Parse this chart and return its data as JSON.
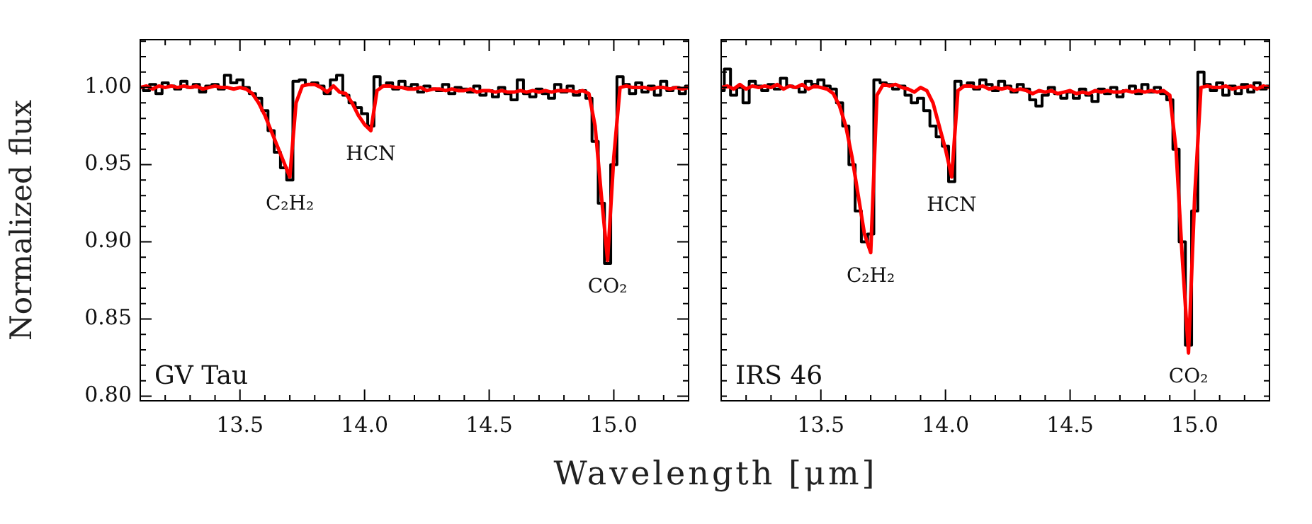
{
  "chart_data": [
    {
      "type": "line",
      "title": "GV Tau",
      "ylabel": "Normalized flux",
      "xlabel": "Wavelength [μm]",
      "marker": "none",
      "xlim": [
        13.1,
        15.3
      ],
      "ylim": [
        0.797,
        1.031
      ],
      "xticks": [
        {
          "value": 13.1,
          "label": null
        },
        {
          "value": 13.2,
          "label": null
        },
        {
          "value": 13.3,
          "label": null
        },
        {
          "value": 13.4,
          "label": null
        },
        {
          "value": 13.5,
          "label": "13.5"
        },
        {
          "value": 13.6,
          "label": null
        },
        {
          "value": 13.7,
          "label": null
        },
        {
          "value": 13.8,
          "label": null
        },
        {
          "value": 13.9,
          "label": null
        },
        {
          "value": 14.0,
          "label": "14.0"
        },
        {
          "value": 14.1,
          "label": null
        },
        {
          "value": 14.2,
          "label": null
        },
        {
          "value": 14.3,
          "label": null
        },
        {
          "value": 14.4,
          "label": null
        },
        {
          "value": 14.5,
          "label": "14.5"
        },
        {
          "value": 14.6,
          "label": null
        },
        {
          "value": 14.7,
          "label": null
        },
        {
          "value": 14.8,
          "label": null
        },
        {
          "value": 14.9,
          "label": null
        },
        {
          "value": 15.0,
          "label": "15.0"
        },
        {
          "value": 15.1,
          "label": null
        },
        {
          "value": 15.2,
          "label": null
        },
        {
          "value": 15.3,
          "label": null
        }
      ],
      "yticks": [
        {
          "value": 0.8,
          "label": "0.80"
        },
        {
          "value": 0.81,
          "label": null
        },
        {
          "value": 0.82,
          "label": null
        },
        {
          "value": 0.83,
          "label": null
        },
        {
          "value": 0.84,
          "label": null
        },
        {
          "value": 0.85,
          "label": "0.85"
        },
        {
          "value": 0.86,
          "label": null
        },
        {
          "value": 0.87,
          "label": null
        },
        {
          "value": 0.88,
          "label": null
        },
        {
          "value": 0.89,
          "label": null
        },
        {
          "value": 0.9,
          "label": "0.90"
        },
        {
          "value": 0.91,
          "label": null
        },
        {
          "value": 0.92,
          "label": null
        },
        {
          "value": 0.93,
          "label": null
        },
        {
          "value": 0.94,
          "label": null
        },
        {
          "value": 0.95,
          "label": "0.95"
        },
        {
          "value": 0.96,
          "label": null
        },
        {
          "value": 0.97,
          "label": null
        },
        {
          "value": 0.98,
          "label": null
        },
        {
          "value": 0.99,
          "label": null
        },
        {
          "value": 1.0,
          "label": "1.00"
        },
        {
          "value": 1.01,
          "label": null
        },
        {
          "value": 1.02,
          "label": null
        },
        {
          "value": 1.03,
          "label": null
        }
      ],
      "annotations": [
        {
          "text": "C₂H₂",
          "x": 13.7,
          "y": 0.94
        },
        {
          "text": "HCN",
          "x": 14.025,
          "y": 0.972
        },
        {
          "text": "CO₂",
          "x": 14.975,
          "y": 0.886
        }
      ],
      "x": [
        13.1,
        13.125,
        13.15,
        13.175,
        13.2,
        13.225,
        13.25,
        13.275,
        13.3,
        13.325,
        13.35,
        13.375,
        13.4,
        13.425,
        13.45,
        13.475,
        13.5,
        13.525,
        13.55,
        13.575,
        13.6,
        13.625,
        13.65,
        13.675,
        13.7,
        13.725,
        13.75,
        13.775,
        13.8,
        13.825,
        13.85,
        13.875,
        13.9,
        13.925,
        13.95,
        13.975,
        14.0,
        14.025,
        14.05,
        14.075,
        14.1,
        14.125,
        14.15,
        14.175,
        14.2,
        14.225,
        14.25,
        14.275,
        14.3,
        14.325,
        14.35,
        14.375,
        14.4,
        14.425,
        14.45,
        14.475,
        14.5,
        14.525,
        14.55,
        14.575,
        14.6,
        14.625,
        14.65,
        14.675,
        14.7,
        14.725,
        14.75,
        14.775,
        14.8,
        14.825,
        14.85,
        14.875,
        14.9,
        14.925,
        14.95,
        14.975,
        15.0,
        15.025,
        15.05,
        15.075,
        15.1,
        15.125,
        15.15,
        15.175,
        15.2,
        15.225,
        15.25,
        15.275,
        15.3
      ],
      "series": [
        {
          "type": "step",
          "color": "#000000",
          "values": [
            1.0,
            0.998,
            1.002,
            0.996,
            1.003,
            1.001,
            0.999,
            1.004,
            1.0,
            1.002,
            0.997,
            1.001,
            1.002,
            0.999,
            1.008,
            1.003,
            1.005,
            1.0,
            0.996,
            0.993,
            0.985,
            0.972,
            0.958,
            0.948,
            0.94,
            1.004,
            1.005,
            1.002,
            1.003,
            1.001,
            0.996,
            1.005,
            1.008,
            0.995,
            0.99,
            0.987,
            0.983,
            0.975,
            1.007,
            1.001,
            1.003,
            0.999,
            1.004,
            1.0,
            1.002,
            0.997,
            1.001,
            0.999,
            0.998,
            1.002,
            0.996,
            1.0,
            0.999,
            0.997,
            1.001,
            0.995,
            0.998,
            0.994,
            1.0,
            0.996,
            0.992,
            1.005,
            0.996,
            0.994,
            0.999,
            0.996,
            0.993,
            1.002,
            0.997,
            1.001,
            0.995,
            0.998,
            0.993,
            0.965,
            0.925,
            0.886,
            0.95,
            1.007,
            1.002,
            0.996,
            1.003,
            0.997,
            1.001,
            0.995,
            1.004,
            0.998,
            1.0,
            0.996,
            1.001
          ]
        },
        {
          "type": "line",
          "color": "#ff0000",
          "values": [
            1.0,
            1.001,
            0.999,
            1.001,
            1.0,
            1.001,
            1.0,
            1.001,
            1.0,
            1.001,
            0.999,
            1.0,
            1.001,
            1.0,
            1.0,
            0.999,
            1.0,
            0.999,
            0.996,
            0.99,
            0.982,
            0.972,
            0.962,
            0.952,
            0.942,
            0.99,
            1.001,
            1.002,
            1.002,
            1.0,
            0.997,
            1.001,
            0.997,
            0.996,
            0.99,
            0.982,
            0.976,
            0.972,
            0.998,
            1.001,
            1.001,
            1.0,
            1.0,
            0.999,
            0.999,
            1.0,
            0.998,
            0.999,
            0.999,
            0.998,
            0.999,
            0.998,
            0.998,
            0.999,
            0.997,
            0.998,
            0.998,
            0.997,
            0.998,
            0.997,
            0.997,
            0.998,
            0.997,
            0.998,
            0.997,
            0.998,
            0.997,
            0.998,
            0.998,
            0.998,
            0.997,
            0.998,
            0.996,
            0.975,
            0.93,
            0.888,
            0.955,
            1.0,
            1.001,
            1.0,
            1.0,
            1.0,
            0.999,
            1.0,
            1.0,
            0.999,
            1.0,
            0.999,
            1.0
          ]
        }
      ]
    },
    {
      "type": "line",
      "title": "IRS 46",
      "tick_labels": "x",
      "marker": "none",
      "xlim": [
        13.1,
        15.3
      ],
      "ylim": [
        0.797,
        1.031
      ],
      "xticks": [
        {
          "value": 13.1,
          "label": null
        },
        {
          "value": 13.2,
          "label": null
        },
        {
          "value": 13.3,
          "label": null
        },
        {
          "value": 13.4,
          "label": null
        },
        {
          "value": 13.5,
          "label": "13.5"
        },
        {
          "value": 13.6,
          "label": null
        },
        {
          "value": 13.7,
          "label": null
        },
        {
          "value": 13.8,
          "label": null
        },
        {
          "value": 13.9,
          "label": null
        },
        {
          "value": 14.0,
          "label": "14.0"
        },
        {
          "value": 14.1,
          "label": null
        },
        {
          "value": 14.2,
          "label": null
        },
        {
          "value": 14.3,
          "label": null
        },
        {
          "value": 14.4,
          "label": null
        },
        {
          "value": 14.5,
          "label": "14.5"
        },
        {
          "value": 14.6,
          "label": null
        },
        {
          "value": 14.7,
          "label": null
        },
        {
          "value": 14.8,
          "label": null
        },
        {
          "value": 14.9,
          "label": null
        },
        {
          "value": 15.0,
          "label": "15.0"
        },
        {
          "value": 15.1,
          "label": null
        },
        {
          "value": 15.2,
          "label": null
        },
        {
          "value": 15.3,
          "label": null
        }
      ],
      "yticks": [
        {
          "value": 0.8,
          "label": null
        },
        {
          "value": 0.81,
          "label": null
        },
        {
          "value": 0.82,
          "label": null
        },
        {
          "value": 0.83,
          "label": null
        },
        {
          "value": 0.84,
          "label": null
        },
        {
          "value": 0.85,
          "label": null
        },
        {
          "value": 0.86,
          "label": null
        },
        {
          "value": 0.87,
          "label": null
        },
        {
          "value": 0.88,
          "label": null
        },
        {
          "value": 0.89,
          "label": null
        },
        {
          "value": 0.9,
          "label": null
        },
        {
          "value": 0.91,
          "label": null
        },
        {
          "value": 0.92,
          "label": null
        },
        {
          "value": 0.93,
          "label": null
        },
        {
          "value": 0.94,
          "label": null
        },
        {
          "value": 0.95,
          "label": null
        },
        {
          "value": 0.96,
          "label": null
        },
        {
          "value": 0.97,
          "label": null
        },
        {
          "value": 0.98,
          "label": null
        },
        {
          "value": 0.99,
          "label": null
        },
        {
          "value": 1.0,
          "label": null
        },
        {
          "value": 1.01,
          "label": null
        },
        {
          "value": 1.02,
          "label": null
        },
        {
          "value": 1.03,
          "label": null
        }
      ],
      "annotations": [
        {
          "text": "C₂H₂",
          "x": 13.7,
          "y": 0.893
        },
        {
          "text": "HCN",
          "x": 14.025,
          "y": 0.939
        },
        {
          "text": "CO₂",
          "x": 14.975,
          "y": 0.828
        }
      ],
      "x": [
        13.1,
        13.125,
        13.15,
        13.175,
        13.2,
        13.225,
        13.25,
        13.275,
        13.3,
        13.325,
        13.35,
        13.375,
        13.4,
        13.425,
        13.45,
        13.475,
        13.5,
        13.525,
        13.55,
        13.575,
        13.6,
        13.625,
        13.65,
        13.675,
        13.7,
        13.725,
        13.75,
        13.775,
        13.8,
        13.825,
        13.85,
        13.875,
        13.9,
        13.925,
        13.95,
        13.975,
        14.0,
        14.025,
        14.05,
        14.075,
        14.1,
        14.125,
        14.15,
        14.175,
        14.2,
        14.225,
        14.25,
        14.275,
        14.3,
        14.325,
        14.35,
        14.375,
        14.4,
        14.425,
        14.45,
        14.475,
        14.5,
        14.525,
        14.55,
        14.575,
        14.6,
        14.625,
        14.65,
        14.675,
        14.7,
        14.725,
        14.75,
        14.775,
        14.8,
        14.825,
        14.85,
        14.875,
        14.9,
        14.925,
        14.95,
        14.975,
        15.0,
        15.025,
        15.05,
        15.075,
        15.1,
        15.125,
        15.15,
        15.175,
        15.2,
        15.225,
        15.25,
        15.275,
        15.3
      ],
      "series": [
        {
          "type": "step",
          "color": "#000000",
          "values": [
            0.998,
            1.012,
            0.995,
            1.0,
            0.99,
            1.004,
            1.001,
            0.998,
            1.002,
            0.999,
            1.006,
            1.001,
            1.0,
            0.997,
            1.004,
            1.002,
            1.005,
            1.001,
            0.999,
            0.99,
            0.975,
            0.95,
            0.92,
            0.9,
            0.905,
            1.005,
            1.003,
            1.002,
            0.999,
            1.001,
            0.995,
            0.99,
            0.993,
            0.985,
            0.975,
            0.968,
            0.962,
            0.939,
            1.004,
            1.001,
            1.003,
            0.999,
            1.005,
            1.002,
            0.998,
            1.004,
            1.001,
            0.997,
            1.002,
            0.999,
            0.992,
            0.988,
            0.995,
            1.0,
            0.996,
            0.993,
            0.997,
            0.993,
            0.999,
            0.995,
            0.991,
            0.999,
            0.996,
            1.0,
            0.994,
            0.998,
            1.001,
            0.996,
            1.002,
            0.997,
            1.0,
            0.996,
            0.992,
            0.96,
            0.9,
            0.833,
            0.92,
            1.01,
            1.002,
            0.998,
            1.003,
            0.995,
            1.001,
            0.996,
            1.002,
            0.997,
            1.003,
            0.999,
            1.001
          ]
        },
        {
          "type": "line",
          "color": "#ff0000",
          "values": [
            1.0,
            1.001,
            0.999,
            1.002,
            0.999,
            1.001,
            1.0,
            1.001,
            1.0,
            1.002,
            0.999,
            1.001,
            1.0,
            1.002,
            0.999,
            1.001,
            1.0,
            0.999,
            0.996,
            0.988,
            0.975,
            0.955,
            0.93,
            0.905,
            0.893,
            0.995,
            1.002,
            1.001,
            1.002,
            1.0,
            0.999,
            0.997,
            1.0,
            0.998,
            0.99,
            0.975,
            0.96,
            0.942,
            0.998,
            1.001,
            1.001,
            1.0,
            1.001,
            0.999,
            1.0,
            0.999,
            1.0,
            0.998,
            0.999,
            0.998,
            0.996,
            0.998,
            0.997,
            0.998,
            0.996,
            0.997,
            0.998,
            0.996,
            0.997,
            0.996,
            0.998,
            0.997,
            0.998,
            0.997,
            0.997,
            0.998,
            0.997,
            0.998,
            0.997,
            0.998,
            0.997,
            0.998,
            0.995,
            0.96,
            0.89,
            0.828,
            0.93,
            1.0,
            1.001,
            1.0,
            1.0,
            1.001,
            0.999,
            1.0,
            1.0,
            1.001,
            0.999,
            1.001,
            1.0
          ]
        }
      ]
    }
  ]
}
